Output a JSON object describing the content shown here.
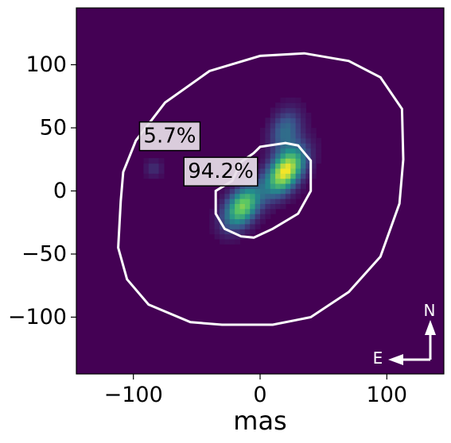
{
  "chart_data": {
    "type": "heatmap",
    "title": "",
    "xlabel": "mas",
    "ylabel": "",
    "xlim": [
      -145,
      145
    ],
    "ylim": [
      -145,
      145
    ],
    "x_ticks": [
      {
        "value": -100,
        "label": "−100"
      },
      {
        "value": 0,
        "label": "0"
      },
      {
        "value": 100,
        "label": "100"
      }
    ],
    "y_ticks": [
      {
        "value": 100,
        "label": "100"
      },
      {
        "value": 50,
        "label": "50"
      },
      {
        "value": 0,
        "label": "0"
      },
      {
        "value": -50,
        "label": "−50"
      },
      {
        "value": -100,
        "label": "−100"
      }
    ],
    "colormap": "viridis",
    "background_color": "#440154",
    "contour_color": "#ffffff",
    "blobs": [
      {
        "x": 20,
        "y": 16,
        "amplitude": 1.0,
        "sigma_major": 14,
        "sigma_minor": 8,
        "angle_deg": 55
      },
      {
        "x": -14,
        "y": -12,
        "amplitude": 0.8,
        "sigma_major": 13,
        "sigma_minor": 8,
        "angle_deg": 55
      },
      {
        "x": 20,
        "y": 48,
        "amplitude": 0.35,
        "sigma_major": 12,
        "sigma_minor": 8,
        "angle_deg": 70
      },
      {
        "x": -84,
        "y": 18,
        "amplitude": 0.14,
        "sigma_major": 5,
        "sigma_minor": 5,
        "angle_deg": 0
      }
    ],
    "contours": [
      {
        "name": "outer",
        "points": [
          [
            -110,
            -8
          ],
          [
            -112,
            -45
          ],
          [
            -105,
            -70
          ],
          [
            -88,
            -90
          ],
          [
            -55,
            -104
          ],
          [
            -30,
            -106
          ],
          [
            10,
            -106
          ],
          [
            40,
            -100
          ],
          [
            70,
            -80
          ],
          [
            95,
            -52
          ],
          [
            110,
            -10
          ],
          [
            113,
            25
          ],
          [
            112,
            65
          ],
          [
            95,
            90
          ],
          [
            70,
            103
          ],
          [
            35,
            109
          ],
          [
            0,
            107
          ],
          [
            -40,
            95
          ],
          [
            -75,
            70
          ],
          [
            -98,
            40
          ],
          [
            -108,
            15
          ]
        ]
      },
      {
        "name": "inner",
        "points": [
          [
            -35,
            -18
          ],
          [
            -35,
            0
          ],
          [
            -22,
            8
          ],
          [
            -15,
            23
          ],
          [
            -5,
            30
          ],
          [
            0,
            35
          ],
          [
            20,
            38
          ],
          [
            30,
            36
          ],
          [
            40,
            24
          ],
          [
            40,
            0
          ],
          [
            30,
            -18
          ],
          [
            10,
            -30
          ],
          [
            -5,
            -37
          ],
          [
            -15,
            -36
          ],
          [
            -28,
            -30
          ]
        ]
      }
    ],
    "annotations": [
      {
        "text": "5.7%",
        "x": -92,
        "y": 43
      },
      {
        "text": "94.2%",
        "x": -57,
        "y": 15
      }
    ],
    "compass": {
      "north": "N",
      "east": "E"
    }
  }
}
